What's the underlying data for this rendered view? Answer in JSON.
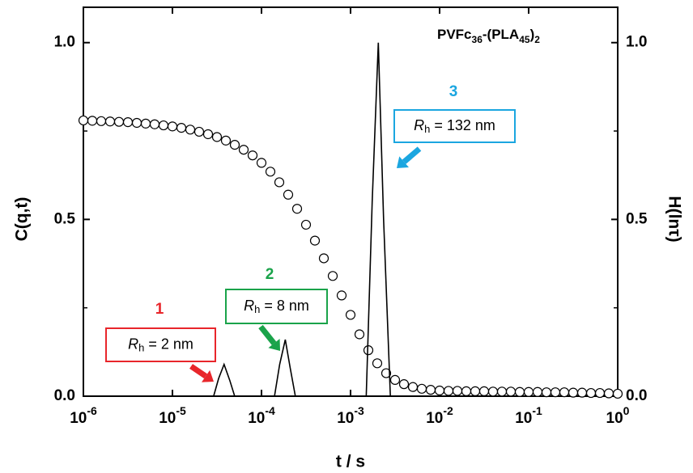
{
  "chart_data": {
    "type": "scatter",
    "title": [
      {
        "text": "PVFc"
      },
      {
        "text": "36",
        "sub": true
      },
      {
        "text": "-(PLA"
      },
      {
        "text": "45",
        "sub": true
      },
      {
        "text": ")"
      },
      {
        "text": "2",
        "sub": true
      }
    ],
    "x_label": "t / s",
    "y_label": "C(q,t)",
    "y2_label": "H(lnτ)",
    "x_log": true,
    "xlim": [
      1e-06,
      1
    ],
    "xticks": [
      {
        "value": 1e-06,
        "label": "10",
        "exponent": "-6"
      },
      {
        "value": 1e-05,
        "label": "10",
        "exponent": "-5"
      },
      {
        "value": 0.0001,
        "label": "10",
        "exponent": "-4"
      },
      {
        "value": 0.001,
        "label": "10",
        "exponent": "-3"
      },
      {
        "value": 0.01,
        "label": "10",
        "exponent": "-2"
      },
      {
        "value": 0.1,
        "label": "10",
        "exponent": "-1"
      },
      {
        "value": 1,
        "label": "10",
        "exponent": "0"
      }
    ],
    "ylim": [
      0,
      1.1
    ],
    "yticks": [
      {
        "value": 0,
        "label": "0.0"
      },
      {
        "value": 0.5,
        "label": "0.5"
      },
      {
        "value": 1,
        "label": "1.0"
      }
    ],
    "yminor": [
      0.25,
      0.75
    ],
    "y2lim": [
      0,
      1.1
    ],
    "y2ticks": [
      {
        "value": 0,
        "label": "0.0"
      },
      {
        "value": 0.5,
        "label": "0.5"
      },
      {
        "value": 1,
        "label": "1.0"
      }
    ],
    "series": [
      {
        "type": "scatter",
        "marker": "circle",
        "color": "#000000",
        "x": [
          1e-06,
          1.259e-06,
          1.585e-06,
          1.995e-06,
          2.512e-06,
          3.162e-06,
          3.981e-06,
          5.012e-06,
          6.31e-06,
          7.943e-06,
          1e-05,
          1.259e-05,
          1.585e-05,
          1.995e-05,
          2.512e-05,
          3.162e-05,
          3.981e-05,
          5.012e-05,
          6.31e-05,
          7.943e-05,
          0.0001,
          0.0001259,
          0.0001585,
          0.0001995,
          0.0002512,
          0.0003162,
          0.0003981,
          0.0005012,
          0.000631,
          0.0007943,
          0.001,
          0.001259,
          0.001585,
          0.001995,
          0.002512,
          0.003162,
          0.003981,
          0.005012,
          0.00631,
          0.007943,
          0.01,
          0.01259,
          0.01585,
          0.01995,
          0.02512,
          0.03162,
          0.03981,
          0.05012,
          0.0631,
          0.07943,
          0.1,
          0.1259,
          0.1585,
          0.1995,
          0.2512,
          0.3162,
          0.3981,
          0.5012,
          0.631,
          0.7943,
          1
        ],
        "values": [
          0.78,
          0.779,
          0.778,
          0.777,
          0.776,
          0.775,
          0.773,
          0.771,
          0.769,
          0.766,
          0.763,
          0.759,
          0.754,
          0.748,
          0.741,
          0.733,
          0.723,
          0.711,
          0.697,
          0.681,
          0.66,
          0.635,
          0.605,
          0.57,
          0.53,
          0.485,
          0.44,
          0.39,
          0.34,
          0.285,
          0.23,
          0.175,
          0.13,
          0.093,
          0.065,
          0.046,
          0.034,
          0.026,
          0.021,
          0.018,
          0.016,
          0.015,
          0.015,
          0.014,
          0.014,
          0.014,
          0.013,
          0.013,
          0.013,
          0.012,
          0.012,
          0.012,
          0.011,
          0.011,
          0.011,
          0.01,
          0.01,
          0.009,
          0.009,
          0.008,
          0.007
        ]
      },
      {
        "type": "line",
        "axis": "y2",
        "color": "#000000",
        "x": [
          2.9e-05,
          3.3e-05,
          3.8e-05,
          4.4e-05,
          5e-05
        ],
        "values": [
          0,
          0.05,
          0.09,
          0.045,
          0
        ]
      },
      {
        "type": "line",
        "axis": "y2",
        "color": "#000000",
        "x": [
          0.00014,
          0.00016,
          0.000185,
          0.00021,
          0.00024
        ],
        "values": [
          0,
          0.09,
          0.16,
          0.08,
          0
        ]
      },
      {
        "type": "line",
        "axis": "y2",
        "color": "#000000",
        "x": [
          0.0015,
          0.00175,
          0.00205,
          0.00235,
          0.0028
        ],
        "values": [
          0,
          0.55,
          1,
          0.5,
          0
        ]
      }
    ],
    "annotations": [
      {
        "number": "1",
        "symbol": "R",
        "subscript": "h",
        "text": " = 2 nm",
        "color": "#e8262b"
      },
      {
        "number": "2",
        "symbol": "R",
        "subscript": "h",
        "text": " = 8 nm",
        "color": "#1aa34a"
      },
      {
        "number": "3",
        "symbol": "R",
        "subscript": "h",
        "text": " = 132 nm",
        "color": "#1ba6e0"
      }
    ]
  }
}
